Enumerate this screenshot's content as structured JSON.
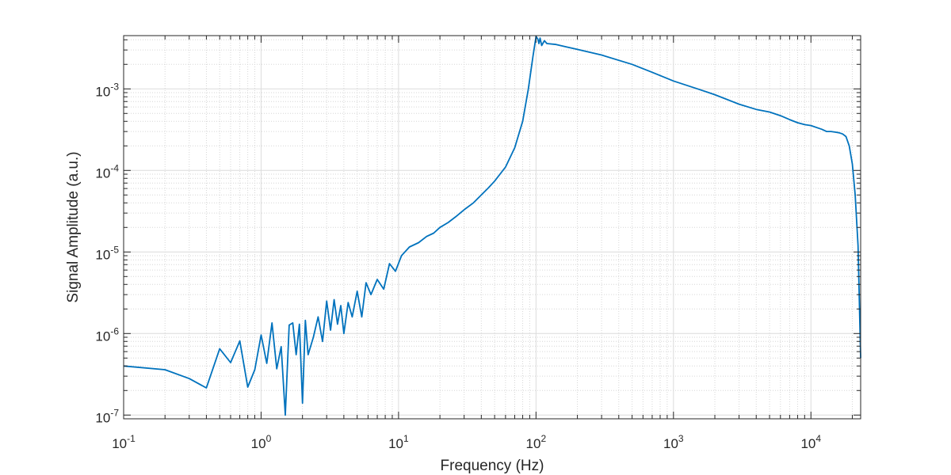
{
  "chart_data": {
    "type": "line",
    "title": "",
    "xlabel": "Frequency (Hz)",
    "ylabel": "Signal Amplitude (a.u.)",
    "x_scale": "log",
    "y_scale": "log",
    "xlim": [
      0.1,
      23000
    ],
    "ylim": [
      9e-08,
      0.0045
    ],
    "grid": true,
    "minor_grid": true,
    "box": true,
    "line_color": "#0072BD",
    "x_ticks": [
      {
        "value": 0.1,
        "base": "10",
        "exp": "-1"
      },
      {
        "value": 1,
        "base": "10",
        "exp": "0"
      },
      {
        "value": 10,
        "base": "10",
        "exp": "1"
      },
      {
        "value": 100,
        "base": "10",
        "exp": "2"
      },
      {
        "value": 1000,
        "base": "10",
        "exp": "3"
      },
      {
        "value": 10000,
        "base": "10",
        "exp": "4"
      }
    ],
    "y_ticks": [
      {
        "value": 1e-07,
        "base": "10",
        "exp": "-7"
      },
      {
        "value": 1e-06,
        "base": "10",
        "exp": "-6"
      },
      {
        "value": 1e-05,
        "base": "10",
        "exp": "-5"
      },
      {
        "value": 0.0001,
        "base": "10",
        "exp": "-4"
      },
      {
        "value": 0.001,
        "base": "10",
        "exp": "-3"
      }
    ],
    "series": [
      {
        "x": [
          0.1,
          0.2,
          0.3,
          0.4,
          0.5,
          0.6,
          0.7,
          0.8,
          0.9,
          1.0,
          1.1,
          1.2,
          1.3,
          1.4,
          1.5,
          1.6,
          1.7,
          1.8,
          1.9,
          2.0,
          2.1,
          2.2,
          2.4,
          2.6,
          2.8,
          3.0,
          3.2,
          3.4,
          3.6,
          3.8,
          4.0,
          4.3,
          4.6,
          5.0,
          5.4,
          5.8,
          6.3,
          7.0,
          7.8,
          8.6,
          9.5,
          10.5,
          12,
          14,
          16,
          18,
          20,
          23,
          26,
          30,
          35,
          40,
          45,
          50,
          60,
          70,
          80,
          88,
          95,
          100,
          103,
          105,
          107,
          110,
          115,
          120,
          140,
          170,
          200,
          300,
          500,
          700,
          1000,
          1500,
          2000,
          3000,
          4000,
          5000,
          6000,
          7000,
          8000,
          9000,
          10000,
          12000,
          13000,
          14000,
          15000,
          16000,
          17000,
          18000,
          19000,
          20000,
          21000,
          22000,
          23000
        ],
        "y": [
          4e-07,
          3.6e-07,
          2.8e-07,
          2.15e-07,
          6.5e-07,
          4.4e-07,
          8.1e-07,
          2.2e-07,
          3.6e-07,
          9.6e-07,
          4.3e-07,
          1.35e-06,
          3.7e-07,
          6.9e-07,
          1e-07,
          1.27e-06,
          1.35e-06,
          5.5e-07,
          1.3e-06,
          1.4e-07,
          1.45e-06,
          5.5e-07,
          9e-07,
          1.6e-06,
          8e-07,
          2.5e-06,
          1.1e-06,
          2.6e-06,
          1.3e-06,
          2.2e-06,
          1e-06,
          2.4e-06,
          1.6e-06,
          3.3e-06,
          1.6e-06,
          4.2e-06,
          3e-06,
          4.6e-06,
          3.5e-06,
          7.2e-06,
          5.8e-06,
          9e-06,
          1.15e-05,
          1.3e-05,
          1.55e-05,
          1.7e-05,
          2e-05,
          2.3e-05,
          2.7e-05,
          3.3e-05,
          4e-05,
          5e-05,
          6.1e-05,
          7.4e-05,
          0.00011,
          0.00019,
          0.0004,
          0.001,
          0.0025,
          0.0044,
          0.0041,
          0.0036,
          0.0042,
          0.0034,
          0.0039,
          0.0036,
          0.0035,
          0.00325,
          0.00305,
          0.0026,
          0.002,
          0.0016,
          0.00125,
          0.001,
          0.00085,
          0.00065,
          0.00056,
          0.00052,
          0.00047,
          0.00042,
          0.000385,
          0.000365,
          0.000355,
          0.00032,
          0.0003,
          0.0003,
          0.000295,
          0.00029,
          0.00028,
          0.00026,
          0.0002,
          0.00012,
          5e-05,
          1.2e-05,
          5e-07
        ]
      }
    ]
  }
}
